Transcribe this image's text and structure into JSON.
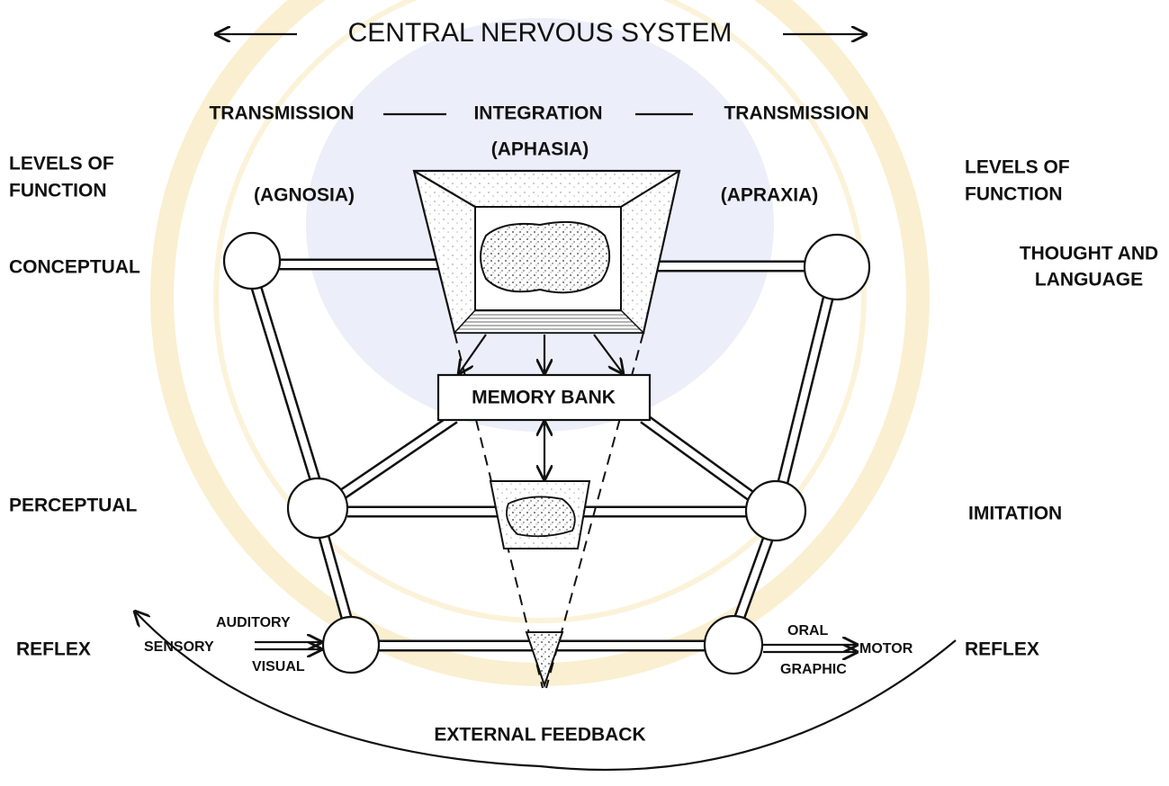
{
  "title": "CENTRAL NERVOUS SYSTEM",
  "header": [
    "TRANSMISSION",
    "INTEGRATION",
    "TRANSMISSION"
  ],
  "disorders": {
    "center": "(APHASIA)",
    "left": "(AGNOSIA)",
    "right": "(APRAXIA)"
  },
  "left_levels": {
    "heading": [
      "LEVELS OF",
      "FUNCTION"
    ],
    "conceptual": "CONCEPTUAL",
    "perceptual": "PERCEPTUAL",
    "reflex": "REFLEX"
  },
  "right_levels": {
    "heading": [
      "LEVELS OF",
      "FUNCTION"
    ],
    "conceptual": [
      "THOUGHT AND",
      "LANGUAGE"
    ],
    "perceptual": "IMITATION",
    "reflex": "REFLEX"
  },
  "memory_bank": "MEMORY BANK",
  "inputs": [
    "AUDITORY",
    "SENSORY",
    "VISUAL"
  ],
  "outputs": [
    "ORAL",
    "MOTOR",
    "GRAPHIC"
  ],
  "feedback": "EXTERNAL FEEDBACK"
}
